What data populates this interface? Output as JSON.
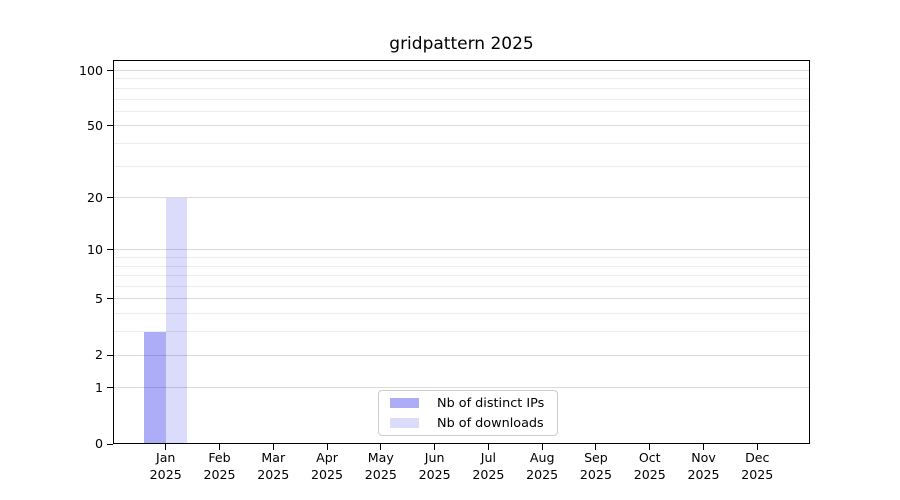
{
  "title": "gridpattern 2025",
  "chart_data": {
    "type": "bar",
    "title": "gridpattern 2025",
    "categories": [
      "Jan",
      "Feb",
      "Mar",
      "Apr",
      "May",
      "Jun",
      "Jul",
      "Aug",
      "Sep",
      "Oct",
      "Nov",
      "Dec"
    ],
    "x_year_label": "2025",
    "series": [
      {
        "name": "Nb of distinct IPs",
        "color_hex": "#adadf7",
        "color_rgba": "rgba(10,10,230,0.335)",
        "values": [
          3,
          0,
          0,
          0,
          0,
          0,
          0,
          0,
          0,
          0,
          0,
          0
        ]
      },
      {
        "name": "Nb of downloads",
        "color_hex": "#dbdbfb",
        "color_rgba": "rgba(10,10,230,0.145)",
        "values": [
          20,
          0,
          0,
          0,
          0,
          0,
          0,
          0,
          0,
          0,
          0,
          0
        ]
      }
    ],
    "y_scale": "log1p",
    "ylim": [
      0,
      114
    ],
    "xlim": [
      -0.98,
      11.98
    ],
    "y_major_ticks": [
      0,
      1,
      2,
      5,
      10,
      20,
      50,
      100
    ],
    "y_minor_ticks": [
      3,
      4,
      6,
      7,
      8,
      9,
      30,
      40,
      60,
      70,
      80,
      90
    ],
    "bar_width": 0.4,
    "bar_offsets": [
      -0.2,
      0.2
    ],
    "grid": "horizontal major+minor",
    "legend": {
      "position": "lower center"
    }
  },
  "colors": {
    "background": "#ffffff",
    "axis": "#000000",
    "grid_major": "#dadada",
    "grid_minor": "#ececec",
    "legend_border": "#cccccc"
  }
}
